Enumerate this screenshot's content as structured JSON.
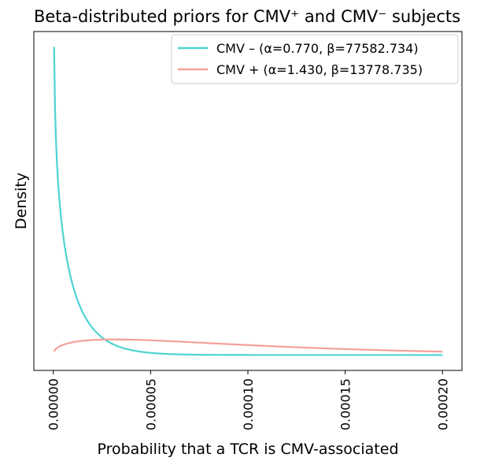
{
  "chart_data": {
    "type": "line",
    "title": "Beta-distributed priors for CMV⁺ and CMV⁻ subjects",
    "xlabel": "Probability that a TCR is CMV-associated",
    "ylabel": "Density",
    "xlim": [
      -1e-05,
      0.00021
    ],
    "x_ticks": [
      0.0,
      5e-05,
      0.0001,
      0.00015,
      0.0002
    ],
    "x_tick_labels": [
      "0.00000",
      "0.00005",
      "0.00010",
      "0.00015",
      "0.00020"
    ],
    "y_ticks_shown": false,
    "legend": {
      "position": "top-right"
    },
    "x_range": [
      4e-07,
      0.0002
    ],
    "series": [
      {
        "name": "CMV – (α=0.770, β=77582.734)",
        "alpha": 0.77,
        "beta": 77582.734,
        "color": "#4fd3d3"
      },
      {
        "name": "CMV + (α=1.430, β=13778.735)",
        "alpha": 1.43,
        "beta": 13778.735,
        "color": "#f4a09a"
      }
    ]
  }
}
